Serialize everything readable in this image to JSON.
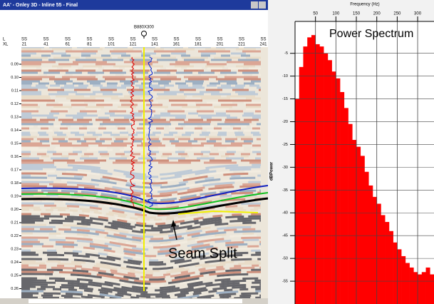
{
  "window": {
    "title": "AA' - Onley 3D - Inline 55 - Final",
    "row_labels": [
      "L",
      "XL"
    ],
    "columns": [
      {
        "line": "SS",
        "xl": "21"
      },
      {
        "line": "SS",
        "xl": "41"
      },
      {
        "line": "SS",
        "xl": "61"
      },
      {
        "line": "SS",
        "xl": "81"
      },
      {
        "line": "SS",
        "xl": "101"
      },
      {
        "line": "SS",
        "xl": "121"
      },
      {
        "line": "SS",
        "xl": "141"
      },
      {
        "line": "SS",
        "xl": "161"
      },
      {
        "line": "SS",
        "xl": "181"
      },
      {
        "line": "SS",
        "xl": "201"
      },
      {
        "line": "SS",
        "xl": "221"
      },
      {
        "line": "SS",
        "xl": "241"
      }
    ],
    "well": "B880X300",
    "time_labels": [
      "0.09",
      "0.10",
      "0.11",
      "0.12",
      "0.13",
      "0.14",
      "0.15",
      "0.16",
      "0.17",
      "0.18",
      "0.19",
      "0.20",
      "0.21",
      "0.22",
      "0.23",
      "0.24",
      "0.25",
      "0.26"
    ],
    "annotation": "Seam Split"
  },
  "chart_data": {
    "type": "histogram",
    "title": "Power Spectrum",
    "x_label": "Frequency (Hz)",
    "y_label": "dBPower",
    "bins": [
      0,
      10,
      20,
      30,
      40,
      50,
      60,
      70,
      80,
      90,
      100,
      110,
      120,
      130,
      140,
      150,
      160,
      170,
      180,
      190,
      200,
      210,
      220,
      230,
      240,
      250,
      260,
      270,
      280,
      290,
      300,
      310,
      320,
      330,
      340
    ],
    "values": [
      -15,
      -8,
      -3.5,
      -1.5,
      -1,
      -3,
      -3.5,
      -5,
      -6.5,
      -9,
      -10.5,
      -13.5,
      -17,
      -20.5,
      -24,
      -25.5,
      -27.5,
      -31,
      -34,
      -36.5,
      -38,
      -40.5,
      -42,
      -44,
      -46.5,
      -48,
      -49.5,
      -51,
      -52,
      -53,
      -53.5,
      -53,
      -52,
      -53.5
    ],
    "color": "#ff0000",
    "xlim": [
      0,
      340
    ],
    "ylim": [
      -60,
      2
    ],
    "xticks": [
      50,
      100,
      150,
      200,
      250,
      300
    ],
    "yticks": [
      -5,
      -10,
      -15,
      -20,
      -25,
      -30,
      -35,
      -40,
      -45,
      -50,
      -55
    ],
    "grid": true
  }
}
